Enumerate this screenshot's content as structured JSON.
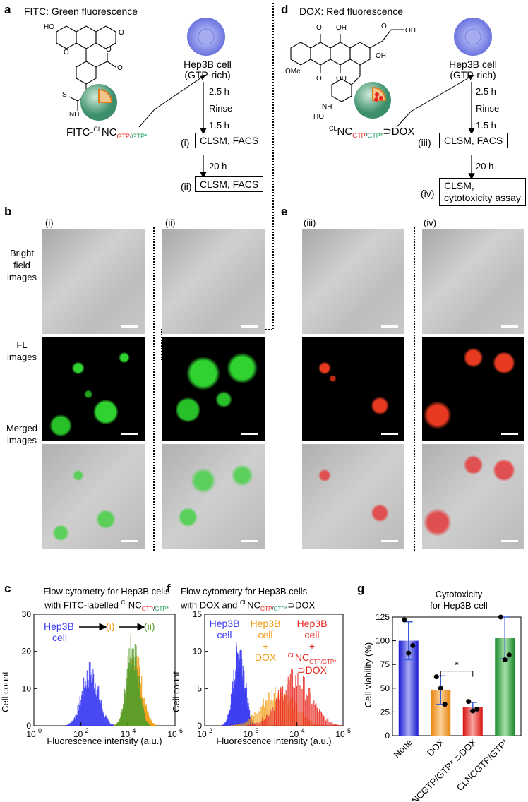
{
  "panels": {
    "a": {
      "letter": "a",
      "title": "FITC: Green fluorescence",
      "compound_label": "FITC-",
      "cell_label_1": "Hep3B cell",
      "cell_label_2": "(GTP-rich)",
      "step1": "2.5 h",
      "step2": "Rinse",
      "step3": "1.5 h",
      "box1_num": "(i)",
      "box1": "CLSM, FACS",
      "step4": "20 h",
      "box2_num": "(ii)",
      "box2": "CLSM, FACS"
    },
    "d": {
      "letter": "d",
      "title": "DOX: Red fluorescence",
      "cell_label_1": "Hep3B cell",
      "cell_label_2": "(GTP-rich)",
      "step1": "2.5 h",
      "step2": "Rinse",
      "step3": "1.5 h",
      "box1_num": "(iii)",
      "box1": "CLSM, FACS",
      "step4": "20 h",
      "box2_num": "(iv)",
      "box2_line1": "CLSM,",
      "box2_line2": "cytotoxicity assay"
    },
    "b": {
      "letter": "b",
      "col1": "(i)",
      "col2": "(ii)",
      "row1": [
        "Bright",
        "field",
        "images"
      ],
      "row2": [
        "FL",
        "images"
      ],
      "row3": [
        "Merged",
        "images"
      ]
    },
    "e": {
      "letter": "e",
      "col1": "(iii)",
      "col2": "(iv)"
    },
    "c": {
      "letter": "c",
      "title1": "Flow cytometry for Hep3B cells",
      "title2": "with FITC-labelled ",
      "legend1": "Hep3B",
      "legend1b": "cell",
      "legend2": "(i)",
      "legend3": "(ii)"
    },
    "f": {
      "letter": "f",
      "title1": "Flow cytometry for Hep3B cells",
      "title2": "with DOX and ",
      "legend1": "Hep3B",
      "legend1b": "cell",
      "legend2a": "Hep3B",
      "legend2b": "cell",
      "legend2c": "+",
      "legend2d": "DOX",
      "legend3a": "Hep3B",
      "legend3b": "cell",
      "legend3c": "+",
      "legend3e": "⊃DOX"
    },
    "g": {
      "letter": "g",
      "title1": "Cytotoxicity",
      "title2": "for Hep3B cell",
      "significance": "*"
    }
  },
  "chem": {
    "OMe": "OMe",
    "OH": "OH",
    "O": "O",
    "NH2": "NH",
    "HO": "HO",
    "S": "S",
    "H": "H",
    "N": "N"
  },
  "nc": {
    "cl": "CL",
    "nc": "NC",
    "gtp": "GTP",
    "slash": "/",
    "gtpstar": "GTP*",
    "dox": "⊃DOX"
  },
  "colors": {
    "blue": "#3b3bf2",
    "orange": "#f39c12",
    "green": "#5a9e2a",
    "red": "#e8261f",
    "gtp_red": "#e8261f",
    "gtp_green": "#1a9e5a"
  },
  "chart_data": [
    {
      "type": "histogram",
      "panel": "c",
      "title": "Flow cytometry for Hep3B cells with FITC-labelled CLNCGTP/GTP*",
      "xlabel": "Fluorescence intensity (a.u.)",
      "ylabel": "Cell count",
      "xscale": "log",
      "xlim": [
        1,
        1000000
      ],
      "ylim": [
        0,
        30
      ],
      "xticks": [
        "10",
        "10",
        "10",
        "10"
      ],
      "xtick_exp": [
        "0",
        "2",
        "4",
        "6"
      ],
      "yticks": [
        "0",
        "10",
        "20",
        "30"
      ],
      "series": [
        {
          "name": "Hep3B cell",
          "color": "#3b3bf2",
          "center_log10": 2.4,
          "width_log10": 0.35,
          "peak": 18
        },
        {
          "name": "(i)",
          "color": "#f39c12",
          "center_log10": 4.3,
          "width_log10": 0.3,
          "peak": 22
        },
        {
          "name": "(ii)",
          "color": "#5a9e2a",
          "center_log10": 4.2,
          "width_log10": 0.25,
          "peak": 27
        }
      ]
    },
    {
      "type": "histogram",
      "panel": "f",
      "title": "Flow cytometry for Hep3B cells with DOX and CLNCGTP/GTP*⊃DOX",
      "xlabel": "Fluorescence intensity (a.u.)",
      "ylabel": "Cell count",
      "xscale": "log",
      "xlim": [
        100,
        100000
      ],
      "ylim": [
        0,
        15
      ],
      "xticks": [
        "10",
        "10",
        "10",
        "10"
      ],
      "xtick_exp": [
        "2",
        "3",
        "4",
        "5"
      ],
      "yticks": [
        "0",
        "5",
        "10",
        "15"
      ],
      "series": [
        {
          "name": "Hep3B cell",
          "color": "#3b3bf2",
          "center_log10": 2.75,
          "width_log10": 0.12,
          "peak": 13
        },
        {
          "name": "Hep3B cell + DOX",
          "color": "#f39c12",
          "center_log10": 3.6,
          "width_log10": 0.35,
          "peak": 6
        },
        {
          "name": "Hep3B cell + CLNCGTP/GTP* ⊃DOX",
          "color": "#e8261f",
          "center_log10": 3.95,
          "width_log10": 0.35,
          "peak": 8
        }
      ]
    },
    {
      "type": "bar",
      "panel": "g",
      "title": "Cytotoxicity for Hep3B cell",
      "ylabel": "Cell viability (%)",
      "ylim": [
        0,
        125
      ],
      "yticks": [
        "0",
        "25",
        "50",
        "75",
        "100",
        "125"
      ],
      "categories": [
        "None",
        "DOX",
        "CLNCGTP/GTP* ⊃DOX",
        "CLNCGTP/GTP*"
      ],
      "values": [
        100,
        48,
        30,
        103
      ],
      "errors": [
        20,
        15,
        5,
        22
      ],
      "points": [
        [
          122,
          87,
          95
        ],
        [
          62,
          50,
          33
        ],
        [
          36,
          26,
          28
        ],
        [
          125,
          80,
          85
        ]
      ],
      "colors": [
        "#3b3bf2",
        "#f39c12",
        "#e8261f",
        "#2c9e3a"
      ]
    }
  ]
}
